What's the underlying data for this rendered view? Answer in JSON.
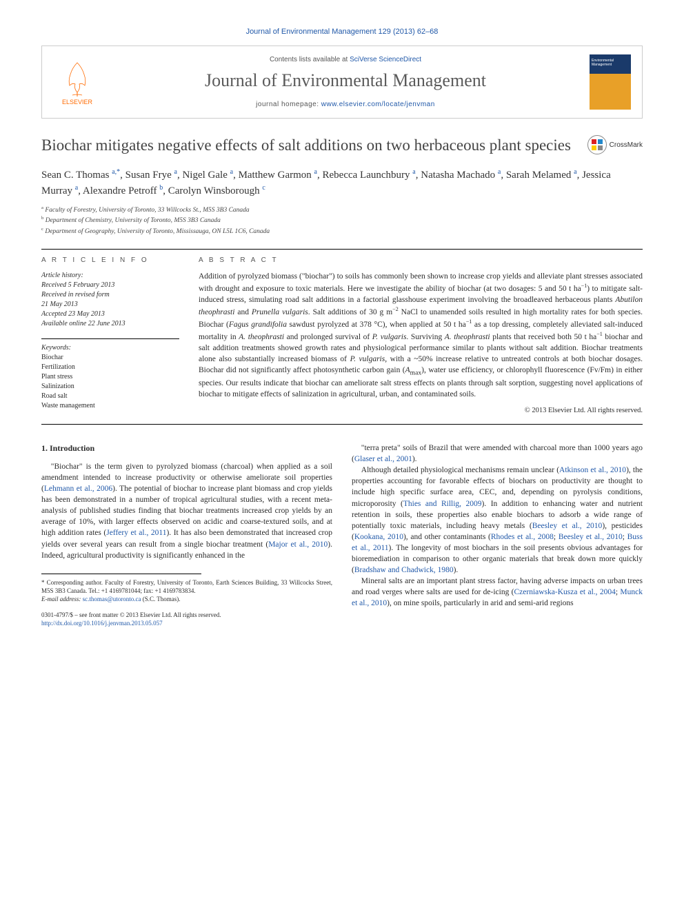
{
  "header": {
    "citation": "Journal of Environmental Management 129 (2013) 62–68",
    "contents_prefix": "Contents lists available at ",
    "contents_link": "SciVerse ScienceDirect",
    "journal_name": "Journal of Environmental Management",
    "homepage_prefix": "journal homepage: ",
    "homepage_url": "www.elsevier.com/locate/jenvman",
    "publisher": "ELSEVIER",
    "cover_label": "Environmental Management"
  },
  "crossmark_label": "CrossMark",
  "title": "Biochar mitigates negative effects of salt additions on two herbaceous plant species",
  "authors_html": "Sean C. Thomas <sup>a,*</sup>, Susan Frye <sup>a</sup>, Nigel Gale <sup>a</sup>, Matthew Garmon <sup>a</sup>, Rebecca Launchbury <sup>a</sup>, Natasha Machado <sup>a</sup>, Sarah Melamed <sup>a</sup>, Jessica Murray <sup>a</sup>, Alexandre Petroff <sup>b</sup>, Carolyn Winsborough <sup>c</sup>",
  "affiliations": [
    {
      "sup": "a",
      "text": "Faculty of Forestry, University of Toronto, 33 Willcocks St., M5S 3B3 Canada"
    },
    {
      "sup": "b",
      "text": "Department of Chemistry, University of Toronto, M5S 3B3 Canada"
    },
    {
      "sup": "c",
      "text": "Department of Geography, University of Toronto, Mississauga, ON L5L 1C6, Canada"
    }
  ],
  "article_info": {
    "label": "A R T I C L E  I N F O",
    "history_label": "Article history:",
    "received": "Received 5 February 2013",
    "revised1": "Received in revised form",
    "revised2": "21 May 2013",
    "accepted": "Accepted 23 May 2013",
    "online": "Available online 22 June 2013",
    "keywords_label": "Keywords:",
    "keywords": [
      "Biochar",
      "Fertilization",
      "Plant stress",
      "Salinization",
      "Road salt",
      "Waste management"
    ]
  },
  "abstract": {
    "label": "A B S T R A C T",
    "text_html": "Addition of pyrolyzed biomass (\"biochar\") to soils has commonly been shown to increase crop yields and alleviate plant stresses associated with drought and exposure to toxic materials. Here we investigate the ability of biochar (at two dosages: 5 and 50 t ha<sup>−1</sup>) to mitigate salt-induced stress, simulating road salt additions in a factorial glasshouse experiment involving the broadleaved herbaceous plants <em>Abutilon theophrasti</em> and <em>Prunella vulgaris</em>. Salt additions of 30 g m<sup>−2</sup> NaCl to unamended soils resulted in high mortality rates for both species. Biochar (<em>Fagus grandifolia</em> sawdust pyrolyzed at 378 °C), when applied at 50 t ha<sup>−1</sup> as a top dressing, completely alleviated salt-induced mortality in <em>A. theophrasti</em> and prolonged survival of <em>P. vulgaris</em>. Surviving <em>A. theophrasti</em> plants that received both 50 t ha<sup>−1</sup> biochar and salt addition treatments showed growth rates and physiological performance similar to plants without salt addition. Biochar treatments alone also substantially increased biomass of <em>P. vulgaris</em>, with a ~50% increase relative to untreated controls at both biochar dosages. Biochar did not significantly affect photosynthetic carbon gain (<em>A</em><sub>max</sub>), water use efficiency, or chlorophyll fluorescence (Fv/Fm) in either species. Our results indicate that biochar can ameliorate salt stress effects on plants through salt sorption, suggesting novel applications of biochar to mitigate effects of salinization in agricultural, urban, and contaminated soils.",
    "copyright": "© 2013 Elsevier Ltd. All rights reserved."
  },
  "body": {
    "section_heading": "1. Introduction",
    "left_paragraphs": [
      "\"Biochar\" is the term given to pyrolyzed biomass (charcoal) when applied as a soil amendment intended to increase productivity or otherwise ameliorate soil properties (<span class=\"cite\">Lehmann et al., 2006</span>). The potential of biochar to increase plant biomass and crop yields has been demonstrated in a number of tropical agricultural studies, with a recent meta-analysis of published studies finding that biochar treatments increased crop yields by an average of 10%, with larger effects observed on acidic and coarse-textured soils, and at high addition rates (<span class=\"cite\">Jeffery et al., 2011</span>). It has also been demonstrated that increased crop yields over several years can result from a single biochar treatment (<span class=\"cite\">Major et al., 2010</span>). Indeed, agricultural productivity is significantly enhanced in the"
    ],
    "right_paragraphs": [
      "\"terra preta\" soils of Brazil that were amended with charcoal more than 1000 years ago (<span class=\"cite\">Glaser et al., 2001</span>).",
      "Although detailed physiological mechanisms remain unclear (<span class=\"cite\">Atkinson et al., 2010</span>), the properties accounting for favorable effects of biochars on productivity are thought to include high specific surface area, CEC, and, depending on pyrolysis conditions, microporosity (<span class=\"cite\">Thies and Rillig, 2009</span>). In addition to enhancing water and nutrient retention in soils, these properties also enable biochars to adsorb a wide range of potentially toxic materials, including heavy metals (<span class=\"cite\">Beesley et al., 2010</span>), pesticides (<span class=\"cite\">Kookana, 2010</span>), and other contaminants (<span class=\"cite\">Rhodes et al., 2008</span>; <span class=\"cite\">Beesley et al., 2010</span>; <span class=\"cite\">Buss et al., 2011</span>). The longevity of most biochars in the soil presents obvious advantages for bioremediation in comparison to other organic materials that break down more quickly (<span class=\"cite\">Bradshaw and Chadwick, 1980</span>).",
      "Mineral salts are an important plant stress factor, having adverse impacts on urban trees and road verges where salts are used for de-icing (<span class=\"cite\">Czerniawska-Kusza et al., 2004</span>; <span class=\"cite\">Munck et al., 2010</span>), on mine spoils, particularly in arid and semi-arid regions"
    ]
  },
  "footnote": {
    "corr_label": "* Corresponding author. Faculty of Forestry, University of Toronto, Earth Sciences Building, 33 Willcocks Street, M5S 3B3 Canada. Tel.: +1 4169781044; fax: +1 4169783834.",
    "email_label": "E-mail address: ",
    "email": "sc.thomas@utoronto.ca",
    "email_suffix": " (S.C. Thomas)."
  },
  "footer": {
    "line1": "0301-4797/$ – see front matter © 2013 Elsevier Ltd. All rights reserved.",
    "doi": "http://dx.doi.org/10.1016/j.jenvman.2013.05.057"
  },
  "colors": {
    "link": "#2058a8",
    "elsevier_orange": "#ff6a00",
    "cover_top": "#1a3a6a",
    "cover_bottom": "#e8a028"
  }
}
